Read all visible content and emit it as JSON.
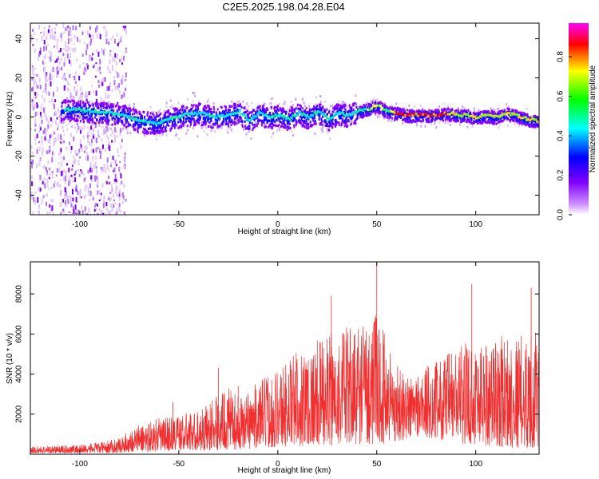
{
  "title": "C2E5.2025.198.04.28.E04",
  "chart_data": [
    {
      "type": "heatmap",
      "xlabel": "Height of straight line (km)",
      "ylabel": "Frequency (Hz)",
      "xlim": [
        -125,
        132
      ],
      "ylim": [
        -50,
        48
      ],
      "xticks": [
        -100,
        -50,
        0,
        50,
        100
      ],
      "yticks": [
        -40,
        -20,
        0,
        20,
        40
      ],
      "grid": false,
      "colorbar": {
        "label": "Normalized spectral amplitude",
        "range": [
          0,
          0.97
        ],
        "ticks": [
          0.0,
          0.2,
          0.4,
          0.6,
          0.8
        ],
        "colors": [
          "#ffffff",
          "#8000ff",
          "#0000ff",
          "#00ffff",
          "#00ff00",
          "#ffff00",
          "#ff0000",
          "#ff00ff"
        ]
      },
      "ridge": {
        "x": [
          -105,
          -95,
          -85,
          -78,
          -70,
          -62,
          -55,
          -48,
          -40,
          -32,
          -25,
          -20,
          -15,
          -10,
          -5,
          0,
          5,
          10,
          15,
          20,
          25,
          30,
          35,
          40,
          45,
          50,
          55,
          60,
          65,
          70,
          75,
          80,
          85,
          90,
          95,
          100,
          105,
          110,
          115,
          120,
          125,
          132
        ],
        "y": [
          4,
          3,
          2,
          1,
          -2,
          -3,
          -1,
          1,
          2,
          0,
          1,
          3,
          -2,
          2,
          0,
          1,
          -1,
          2,
          0,
          3,
          -1,
          2,
          1,
          3,
          4,
          6,
          3,
          2,
          1,
          1,
          1,
          1,
          2,
          1,
          1,
          0,
          1,
          0,
          2,
          1,
          -1,
          -2
        ]
      }
    },
    {
      "type": "line",
      "xlabel": "Height of straight line (km)",
      "ylabel": "SNR (10 * v/v)",
      "xlim": [
        -125,
        132
      ],
      "ylim": [
        0,
        9600
      ],
      "xticks": [
        -100,
        -50,
        0,
        50,
        100
      ],
      "yticks": [
        2000,
        4000,
        6000,
        8000
      ],
      "grid": false,
      "color": "#f03030",
      "envelope": {
        "x": [
          -125,
          -110,
          -100,
          -90,
          -80,
          -75,
          -70,
          -60,
          -50,
          -40,
          -30,
          -25,
          -20,
          -10,
          0,
          10,
          20,
          30,
          40,
          50,
          55,
          60,
          65,
          70,
          80,
          90,
          100,
          110,
          120,
          132
        ],
        "low": [
          200,
          200,
          200,
          250,
          300,
          400,
          500,
          600,
          700,
          700,
          800,
          900,
          1000,
          1200,
          1400,
          1600,
          1700,
          1800,
          1900,
          2000,
          2100,
          2400,
          3000,
          3400,
          3000,
          2300,
          1800,
          1500,
          1200,
          1100
        ],
        "high": [
          400,
          450,
          500,
          600,
          800,
          1200,
          1500,
          1800,
          2000,
          2200,
          3000,
          3300,
          2900,
          3600,
          4400,
          5200,
          5700,
          6200,
          6600,
          7000,
          6000,
          4600,
          4000,
          4200,
          4700,
          5400,
          5800,
          5900,
          6000,
          6100
        ]
      },
      "spikes": [
        {
          "x": -53,
          "y": 2600
        },
        {
          "x": -30,
          "y": 4300
        },
        {
          "x": -20,
          "y": 3400
        },
        {
          "x": 27,
          "y": 7900
        },
        {
          "x": 50,
          "y": 9600
        },
        {
          "x": 98,
          "y": 8500
        },
        {
          "x": 128,
          "y": 8300
        }
      ]
    }
  ]
}
